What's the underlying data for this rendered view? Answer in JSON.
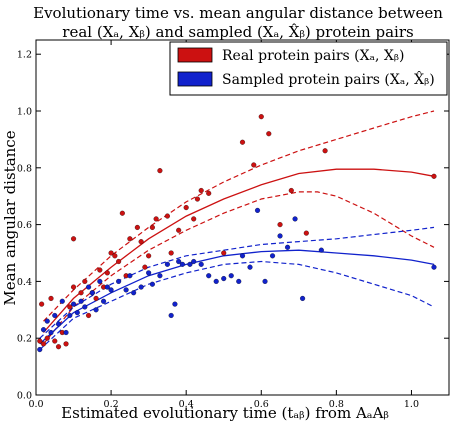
{
  "chart_data": {
    "type": "scatter",
    "title_lines": [
      "Evolutionary time vs. mean angular distance between",
      "real (Xₐ, Xᵦ) and sampled (Xₐ, X̂ᵦ) protein pairs"
    ],
    "xlabel": "Estimated evolutionary time (tₐᵦ) from AₐAᵦ",
    "ylabel": "Mean angular distance",
    "xlim": [
      0.0,
      1.1
    ],
    "ylim": [
      0.0,
      1.25
    ],
    "xticks": [
      "0.0",
      "0.2",
      "0.4",
      "0.6",
      "0.8",
      "1.0"
    ],
    "yticks": [
      "0.0",
      "0.2",
      "0.4",
      "0.6",
      "0.8",
      "1.0",
      "1.2"
    ],
    "grid": false,
    "legend_position": "top-right",
    "series": [
      {
        "name": "Real protein pairs (Xₐ, Xᵦ)",
        "color": "#cc1111",
        "points": [
          [
            0.01,
            0.19
          ],
          [
            0.015,
            0.32
          ],
          [
            0.02,
            0.18
          ],
          [
            0.03,
            0.2
          ],
          [
            0.04,
            0.34
          ],
          [
            0.05,
            0.19
          ],
          [
            0.06,
            0.17
          ],
          [
            0.07,
            0.22
          ],
          [
            0.08,
            0.18
          ],
          [
            0.09,
            0.31
          ],
          [
            0.1,
            0.55
          ],
          [
            0.1,
            0.38
          ],
          [
            0.12,
            0.36
          ],
          [
            0.13,
            0.4
          ],
          [
            0.14,
            0.28
          ],
          [
            0.15,
            0.36
          ],
          [
            0.16,
            0.34
          ],
          [
            0.17,
            0.44
          ],
          [
            0.18,
            0.38
          ],
          [
            0.19,
            0.43
          ],
          [
            0.2,
            0.5
          ],
          [
            0.21,
            0.49
          ],
          [
            0.22,
            0.47
          ],
          [
            0.23,
            0.64
          ],
          [
            0.24,
            0.42
          ],
          [
            0.25,
            0.55
          ],
          [
            0.27,
            0.59
          ],
          [
            0.28,
            0.54
          ],
          [
            0.29,
            0.45
          ],
          [
            0.3,
            0.49
          ],
          [
            0.31,
            0.59
          ],
          [
            0.32,
            0.62
          ],
          [
            0.33,
            0.79
          ],
          [
            0.35,
            0.63
          ],
          [
            0.36,
            0.5
          ],
          [
            0.38,
            0.58
          ],
          [
            0.4,
            0.66
          ],
          [
            0.42,
            0.62
          ],
          [
            0.43,
            0.69
          ],
          [
            0.44,
            0.72
          ],
          [
            0.46,
            0.71
          ],
          [
            0.5,
            0.5
          ],
          [
            0.55,
            0.89
          ],
          [
            0.58,
            0.81
          ],
          [
            0.6,
            0.98
          ],
          [
            0.62,
            0.92
          ],
          [
            0.65,
            0.6
          ],
          [
            0.68,
            0.72
          ],
          [
            0.72,
            0.57
          ],
          [
            0.77,
            0.86
          ],
          [
            1.06,
            0.77
          ]
        ],
        "fit": [
          [
            0.02,
            0.22
          ],
          [
            0.1,
            0.34
          ],
          [
            0.2,
            0.45
          ],
          [
            0.3,
            0.55
          ],
          [
            0.4,
            0.63
          ],
          [
            0.5,
            0.69
          ],
          [
            0.6,
            0.74
          ],
          [
            0.7,
            0.78
          ],
          [
            0.8,
            0.795
          ],
          [
            0.9,
            0.795
          ],
          [
            1.0,
            0.785
          ],
          [
            1.06,
            0.77
          ]
        ],
        "band_upper": [
          [
            0.02,
            0.26
          ],
          [
            0.1,
            0.37
          ],
          [
            0.2,
            0.49
          ],
          [
            0.3,
            0.59
          ],
          [
            0.4,
            0.68
          ],
          [
            0.5,
            0.75
          ],
          [
            0.6,
            0.81
          ],
          [
            0.7,
            0.86
          ],
          [
            0.8,
            0.9
          ],
          [
            0.9,
            0.94
          ],
          [
            1.0,
            0.98
          ],
          [
            1.06,
            1.0
          ]
        ],
        "band_lower": [
          [
            0.02,
            0.18
          ],
          [
            0.1,
            0.31
          ],
          [
            0.2,
            0.42
          ],
          [
            0.3,
            0.51
          ],
          [
            0.4,
            0.58
          ],
          [
            0.5,
            0.64
          ],
          [
            0.6,
            0.69
          ],
          [
            0.7,
            0.715
          ],
          [
            0.75,
            0.715
          ],
          [
            0.8,
            0.7
          ],
          [
            0.9,
            0.64
          ],
          [
            1.0,
            0.56
          ],
          [
            1.06,
            0.52
          ]
        ]
      },
      {
        "name": "Sampled protein pairs (Xₐ, X̂ᵦ)",
        "color": "#1122cc",
        "points": [
          [
            0.01,
            0.16
          ],
          [
            0.02,
            0.23
          ],
          [
            0.03,
            0.26
          ],
          [
            0.04,
            0.22
          ],
          [
            0.05,
            0.28
          ],
          [
            0.06,
            0.25
          ],
          [
            0.07,
            0.33
          ],
          [
            0.08,
            0.22
          ],
          [
            0.09,
            0.28
          ],
          [
            0.1,
            0.32
          ],
          [
            0.11,
            0.29
          ],
          [
            0.12,
            0.33
          ],
          [
            0.13,
            0.31
          ],
          [
            0.14,
            0.38
          ],
          [
            0.15,
            0.36
          ],
          [
            0.16,
            0.3
          ],
          [
            0.17,
            0.4
          ],
          [
            0.18,
            0.33
          ],
          [
            0.19,
            0.38
          ],
          [
            0.2,
            0.37
          ],
          [
            0.22,
            0.4
          ],
          [
            0.24,
            0.37
          ],
          [
            0.25,
            0.42
          ],
          [
            0.26,
            0.36
          ],
          [
            0.28,
            0.38
          ],
          [
            0.3,
            0.43
          ],
          [
            0.31,
            0.39
          ],
          [
            0.33,
            0.42
          ],
          [
            0.35,
            0.46
          ],
          [
            0.36,
            0.28
          ],
          [
            0.37,
            0.32
          ],
          [
            0.38,
            0.47
          ],
          [
            0.39,
            0.46
          ],
          [
            0.41,
            0.46
          ],
          [
            0.42,
            0.47
          ],
          [
            0.44,
            0.46
          ],
          [
            0.46,
            0.42
          ],
          [
            0.48,
            0.4
          ],
          [
            0.5,
            0.41
          ],
          [
            0.52,
            0.42
          ],
          [
            0.54,
            0.4
          ],
          [
            0.55,
            0.49
          ],
          [
            0.57,
            0.45
          ],
          [
            0.59,
            0.65
          ],
          [
            0.61,
            0.4
          ],
          [
            0.63,
            0.49
          ],
          [
            0.65,
            0.56
          ],
          [
            0.67,
            0.52
          ],
          [
            0.69,
            0.62
          ],
          [
            0.71,
            0.34
          ],
          [
            0.76,
            0.51
          ],
          [
            1.06,
            0.45
          ]
        ],
        "fit": [
          [
            0.01,
            0.18
          ],
          [
            0.1,
            0.29
          ],
          [
            0.2,
            0.36
          ],
          [
            0.3,
            0.42
          ],
          [
            0.4,
            0.46
          ],
          [
            0.5,
            0.49
          ],
          [
            0.6,
            0.505
          ],
          [
            0.7,
            0.51
          ],
          [
            0.8,
            0.5
          ],
          [
            0.9,
            0.49
          ],
          [
            1.0,
            0.475
          ],
          [
            1.06,
            0.46
          ]
        ],
        "band_upper": [
          [
            0.01,
            0.2
          ],
          [
            0.1,
            0.31
          ],
          [
            0.2,
            0.39
          ],
          [
            0.3,
            0.45
          ],
          [
            0.4,
            0.49
          ],
          [
            0.5,
            0.51
          ],
          [
            0.6,
            0.53
          ],
          [
            0.7,
            0.54
          ],
          [
            0.8,
            0.55
          ],
          [
            0.9,
            0.565
          ],
          [
            1.0,
            0.58
          ],
          [
            1.06,
            0.59
          ]
        ],
        "band_lower": [
          [
            0.01,
            0.16
          ],
          [
            0.1,
            0.27
          ],
          [
            0.2,
            0.33
          ],
          [
            0.3,
            0.39
          ],
          [
            0.4,
            0.43
          ],
          [
            0.5,
            0.46
          ],
          [
            0.6,
            0.47
          ],
          [
            0.7,
            0.46
          ],
          [
            0.8,
            0.43
          ],
          [
            0.9,
            0.39
          ],
          [
            1.0,
            0.35
          ],
          [
            1.06,
            0.31
          ]
        ]
      }
    ]
  }
}
